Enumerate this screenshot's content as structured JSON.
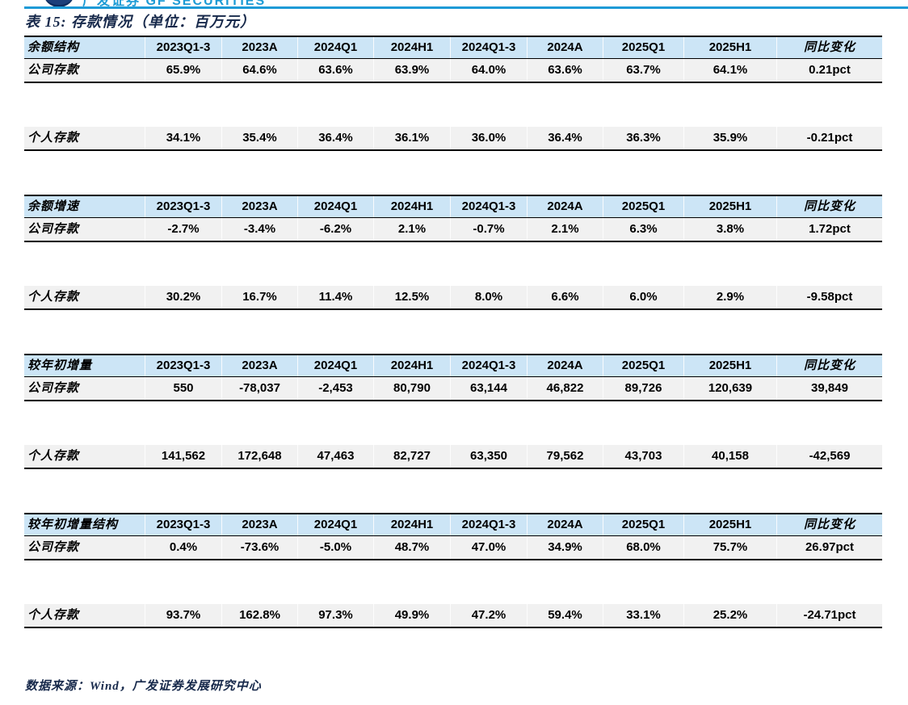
{
  "page": {
    "logo_text": "广发证券 GF SECURITIES",
    "title": "表 15: 存款情况（单位：百万元）",
    "source_note": "数据来源：Wind，广发证券发展研究中心"
  },
  "colors": {
    "accent_blue": "#1e9ad6",
    "header_row_bg": "#cce5f6",
    "data_row_bg": "#f1f1f1",
    "title_navy": "#17294b",
    "text_black": "#000000"
  },
  "chart_data": {
    "type": "table",
    "title": "表 15: 存款情况（单位：百万元）",
    "columns": [
      "2023Q1-3",
      "2023A",
      "2024Q1",
      "2024H1",
      "2024Q1-3",
      "2024A",
      "2025Q1",
      "2025H1",
      "同比变化"
    ],
    "sections": [
      {
        "name": "余额结构",
        "rows": [
          {
            "label": "公司存款",
            "values": [
              "65.9%",
              "64.6%",
              "63.6%",
              "63.9%",
              "64.0%",
              "63.6%",
              "63.7%",
              "64.1%",
              "0.21pct"
            ]
          },
          {
            "label": "个人存款",
            "values": [
              "34.1%",
              "35.4%",
              "36.4%",
              "36.1%",
              "36.0%",
              "36.4%",
              "36.3%",
              "35.9%",
              "-0.21pct"
            ]
          }
        ]
      },
      {
        "name": "余额增速",
        "rows": [
          {
            "label": "公司存款",
            "values": [
              "-2.7%",
              "-3.4%",
              "-6.2%",
              "2.1%",
              "-0.7%",
              "2.1%",
              "6.3%",
              "3.8%",
              "1.72pct"
            ]
          },
          {
            "label": "个人存款",
            "values": [
              "30.2%",
              "16.7%",
              "11.4%",
              "12.5%",
              "8.0%",
              "6.6%",
              "6.0%",
              "2.9%",
              "-9.58pct"
            ]
          }
        ]
      },
      {
        "name": "较年初增量",
        "rows": [
          {
            "label": "公司存款",
            "values": [
              "550",
              "-78,037",
              "-2,453",
              "80,790",
              "63,144",
              "46,822",
              "89,726",
              "120,639",
              "39,849"
            ]
          },
          {
            "label": "个人存款",
            "values": [
              "141,562",
              "172,648",
              "47,463",
              "82,727",
              "63,350",
              "79,562",
              "43,703",
              "40,158",
              "-42,569"
            ]
          }
        ]
      },
      {
        "name": "较年初增量结构",
        "rows": [
          {
            "label": "公司存款",
            "values": [
              "0.4%",
              "-73.6%",
              "-5.0%",
              "48.7%",
              "47.0%",
              "34.9%",
              "68.0%",
              "75.7%",
              "26.97pct"
            ]
          },
          {
            "label": "个人存款",
            "values": [
              "93.7%",
              "162.8%",
              "97.3%",
              "49.9%",
              "47.2%",
              "59.4%",
              "33.1%",
              "25.2%",
              "-24.71pct"
            ]
          }
        ]
      }
    ]
  }
}
